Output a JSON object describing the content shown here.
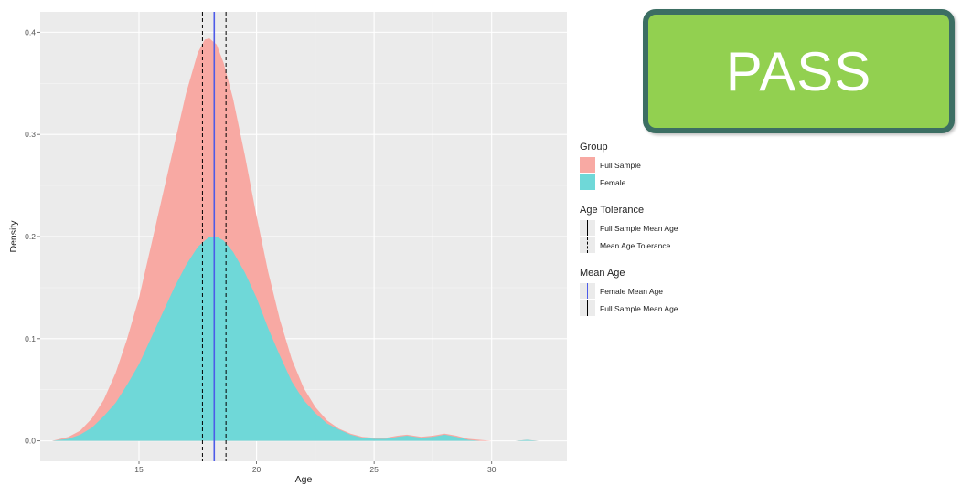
{
  "badge": {
    "text": "PASS",
    "background": "#92d050",
    "border": "#3c6e63"
  },
  "colors": {
    "full_sample_fill": "#f8a9a3",
    "female_fill": "#6fd8d8",
    "panel_background": "#ebebeb",
    "female_mean_line": "#4d5be8",
    "tolerance_line": "#000000"
  },
  "legend": {
    "group": {
      "title": "Group",
      "items": [
        {
          "label": "Full Sample",
          "color": "#f8a9a3"
        },
        {
          "label": "Female",
          "color": "#6fd8d8"
        }
      ]
    },
    "age_tolerance": {
      "title": "Age Tolerance",
      "items": [
        {
          "label": "Full Sample Mean Age",
          "line": "solid"
        },
        {
          "label": "Mean Age Tolerance",
          "line": "dashed"
        }
      ]
    },
    "mean_age": {
      "title": "Mean Age",
      "items": [
        {
          "label": "Female Mean Age",
          "color": "#4d5be8"
        },
        {
          "label": "Full Sample Mean Age",
          "color": "#000000"
        }
      ]
    }
  },
  "chart_data": {
    "type": "area",
    "xlabel": "Age",
    "ylabel": "Density",
    "xlim": [
      10.8,
      33.2
    ],
    "ylim": [
      -0.02,
      0.42
    ],
    "x_ticks": [
      15,
      20,
      25,
      30
    ],
    "y_ticks": [
      0.0,
      0.1,
      0.2,
      0.3,
      0.4
    ],
    "x_tick_labels": [
      "15",
      "20",
      "25",
      "30"
    ],
    "y_tick_labels": [
      "0.0",
      "0.1",
      "0.2",
      "0.3",
      "0.4"
    ],
    "grid": true,
    "legend_position": "right",
    "series": [
      {
        "name": "Full Sample",
        "points": [
          [
            11.3,
            0
          ],
          [
            12,
            0.004
          ],
          [
            12.5,
            0.01
          ],
          [
            13,
            0.022
          ],
          [
            13.5,
            0.04
          ],
          [
            14,
            0.066
          ],
          [
            14.5,
            0.1
          ],
          [
            15,
            0.14
          ],
          [
            15.5,
            0.19
          ],
          [
            16,
            0.24
          ],
          [
            16.5,
            0.29
          ],
          [
            17,
            0.34
          ],
          [
            17.5,
            0.38
          ],
          [
            17.8,
            0.393
          ],
          [
            18,
            0.394
          ],
          [
            18.3,
            0.388
          ],
          [
            18.6,
            0.37
          ],
          [
            19,
            0.335
          ],
          [
            19.5,
            0.28
          ],
          [
            20,
            0.22
          ],
          [
            20.5,
            0.165
          ],
          [
            21,
            0.118
          ],
          [
            21.5,
            0.08
          ],
          [
            22,
            0.052
          ],
          [
            22.5,
            0.033
          ],
          [
            23,
            0.02
          ],
          [
            23.5,
            0.012
          ],
          [
            24,
            0.007
          ],
          [
            24.5,
            0.004
          ],
          [
            25,
            0.003
          ],
          [
            25.5,
            0.003
          ],
          [
            26,
            0.005
          ],
          [
            26.4,
            0.006
          ],
          [
            27,
            0.004
          ],
          [
            27.5,
            0.005
          ],
          [
            28,
            0.007
          ],
          [
            28.5,
            0.005
          ],
          [
            29,
            0.002
          ],
          [
            29.5,
            0.001
          ],
          [
            30,
            0
          ],
          [
            31,
            0
          ],
          [
            31.5,
            0.001
          ],
          [
            32,
            0
          ]
        ]
      },
      {
        "name": "Female",
        "points": [
          [
            11.3,
            0
          ],
          [
            12,
            0.002
          ],
          [
            12.5,
            0.006
          ],
          [
            13,
            0.013
          ],
          [
            13.5,
            0.024
          ],
          [
            14,
            0.037
          ],
          [
            14.5,
            0.055
          ],
          [
            15,
            0.075
          ],
          [
            15.5,
            0.1
          ],
          [
            16,
            0.125
          ],
          [
            16.5,
            0.15
          ],
          [
            17,
            0.172
          ],
          [
            17.5,
            0.19
          ],
          [
            18,
            0.2
          ],
          [
            18.3,
            0.2
          ],
          [
            18.6,
            0.196
          ],
          [
            19,
            0.185
          ],
          [
            19.5,
            0.165
          ],
          [
            20,
            0.14
          ],
          [
            20.5,
            0.11
          ],
          [
            21,
            0.083
          ],
          [
            21.5,
            0.058
          ],
          [
            22,
            0.04
          ],
          [
            22.5,
            0.027
          ],
          [
            23,
            0.017
          ],
          [
            23.5,
            0.011
          ],
          [
            24,
            0.006
          ],
          [
            24.5,
            0.003
          ],
          [
            25,
            0.002
          ],
          [
            25.5,
            0.002
          ],
          [
            26,
            0.004
          ],
          [
            26.4,
            0.005
          ],
          [
            27,
            0.003
          ],
          [
            27.5,
            0.004
          ],
          [
            28,
            0.006
          ],
          [
            28.5,
            0.004
          ],
          [
            29,
            0.001
          ],
          [
            29.5,
            0
          ],
          [
            30,
            0
          ],
          [
            31,
            0
          ],
          [
            31.5,
            0.001
          ],
          [
            32,
            0
          ]
        ]
      }
    ],
    "vertical_lines": [
      {
        "name": "Mean Age Tolerance",
        "x": 17.7,
        "style": "dashed",
        "color": "#000000"
      },
      {
        "name": "Full Sample Mean Age",
        "x": 18.2,
        "style": "solid",
        "color": "#000000"
      },
      {
        "name": "Mean Age Tolerance",
        "x": 18.7,
        "style": "dashed",
        "color": "#000000"
      },
      {
        "name": "Female Mean Age",
        "x": 18.2,
        "style": "solid",
        "color": "#4d5be8"
      }
    ]
  }
}
